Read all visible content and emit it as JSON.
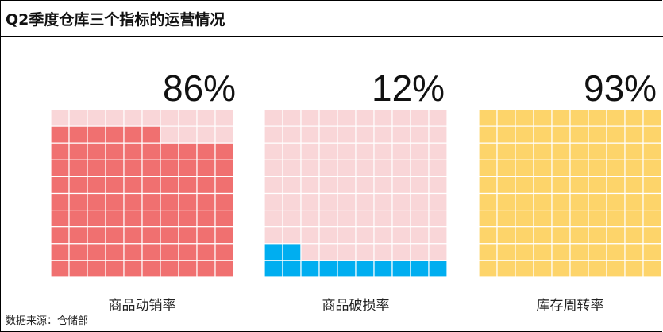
{
  "title": "Q2季度仓库三个指标的运营情况",
  "source": "数据来源：仓储部",
  "chart_data": {
    "type": "waffle",
    "grid": [
      10,
      10
    ],
    "items": [
      {
        "label": "商品动销率",
        "value": 86,
        "value_label": "86%",
        "fill_color": "#f07070",
        "empty_color": "#f9d6d8"
      },
      {
        "label": "商品破损率",
        "value": 12,
        "value_label": "12%",
        "fill_color": "#00aef0",
        "empty_color": "#f9d6d8"
      },
      {
        "label": "库存周转率",
        "value": 93,
        "value_label": "93%",
        "fill_color": "#fdd46a",
        "empty_color": "#fdd46a"
      }
    ]
  }
}
